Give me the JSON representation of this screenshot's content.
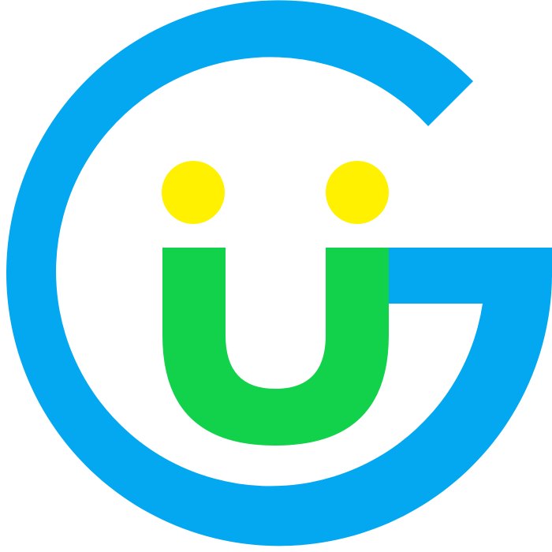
{
  "logo": {
    "letters_depicted": "GU",
    "colors": {
      "background": "#ffffff",
      "g_ring": "#03a8f1",
      "u_shape": "#12d14a",
      "eyes": "#fff100"
    },
    "icons": [
      "g-letter-icon",
      "u-letter-icon",
      "smiley-eye-icon"
    ]
  }
}
